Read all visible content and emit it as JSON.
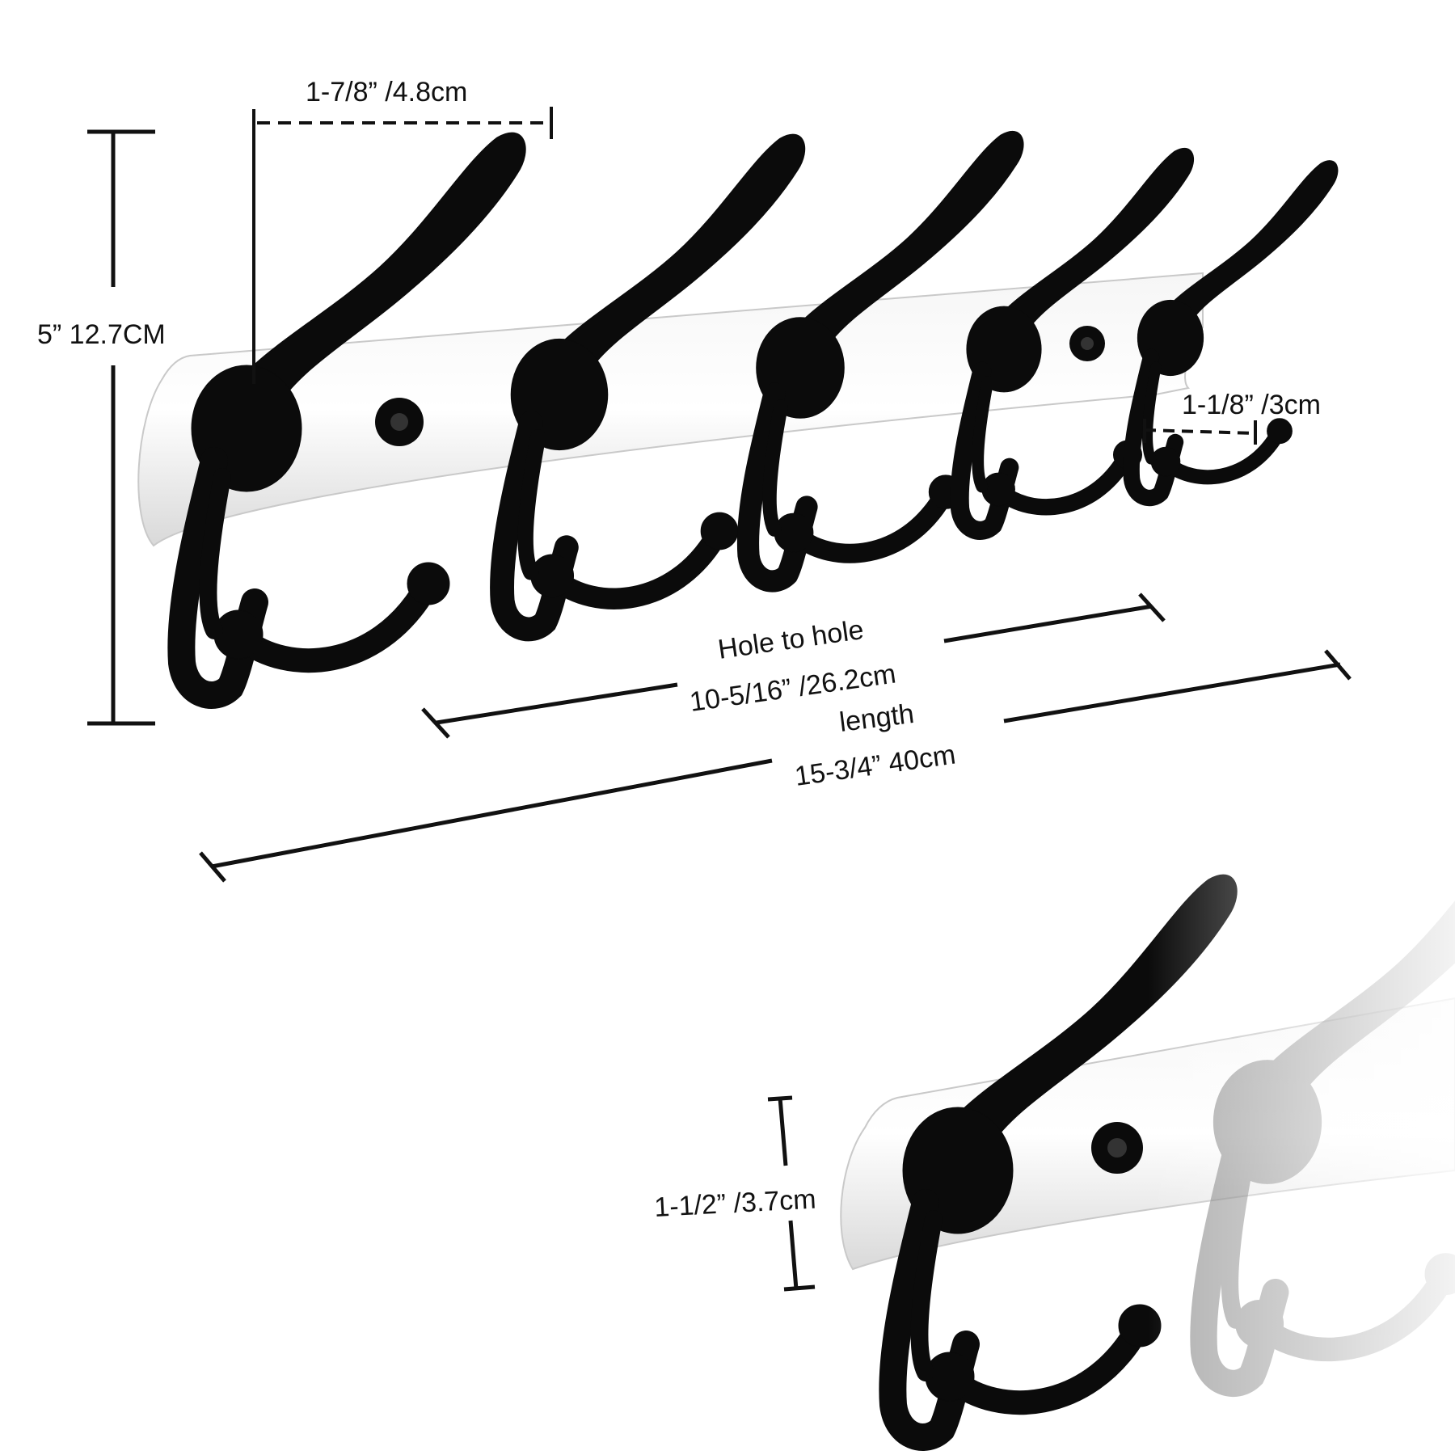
{
  "colors": {
    "background": "#ffffff",
    "hook": "#0b0b0b",
    "plate": "#ececec",
    "dimension_line": "#111111"
  },
  "main_rack": {
    "hook_count": 5,
    "dimensions": {
      "hook_spacing": "1-7/8” /4.8cm",
      "height": "5” 12.7CM",
      "hook_tip_depth": "1-1/8” /3cm",
      "hole_to_hole_title": "Hole to hole",
      "hole_to_hole_value": "10-5/16” /26.2cm",
      "length_title": "length",
      "length_value": "15-3/4” 40cm"
    }
  },
  "detail_view": {
    "plate_height": "1-1/2” /3.7cm"
  }
}
